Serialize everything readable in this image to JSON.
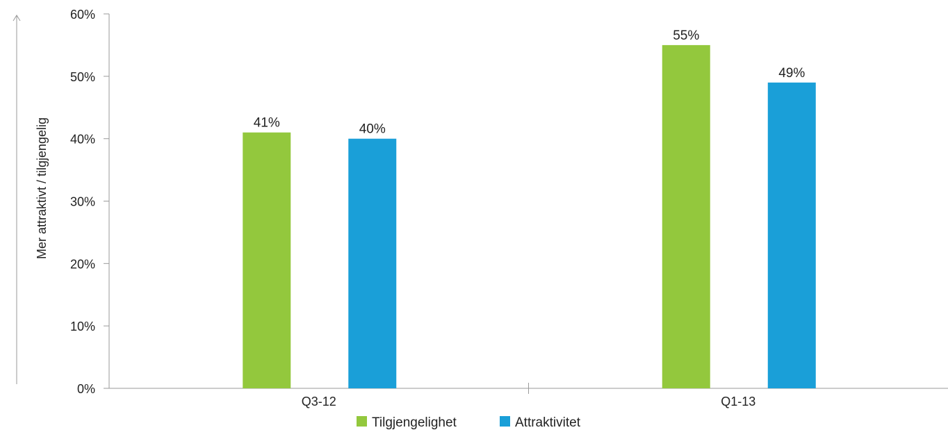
{
  "chart_data": {
    "type": "bar",
    "title": "",
    "xlabel": "",
    "ylabel": "Mer attraktivt / tilgjengelig",
    "categories": [
      "Q3-12",
      "Q1-13"
    ],
    "series": [
      {
        "name": "Tilgjengelighet",
        "values": [
          41,
          55
        ],
        "labels": [
          "41%",
          "55%"
        ],
        "color": "#93c83d"
      },
      {
        "name": "Attraktivitet",
        "values": [
          40,
          49
        ],
        "labels": [
          "40%",
          "49%"
        ],
        "color": "#1a9fd8"
      }
    ],
    "ylim": [
      0,
      60
    ],
    "yticks": [
      0,
      10,
      20,
      30,
      40,
      50,
      60
    ],
    "ytick_labels": [
      "0%",
      "10%",
      "20%",
      "30%",
      "40%",
      "50%",
      "60%"
    ],
    "legend_position": "bottom",
    "grid": false
  }
}
